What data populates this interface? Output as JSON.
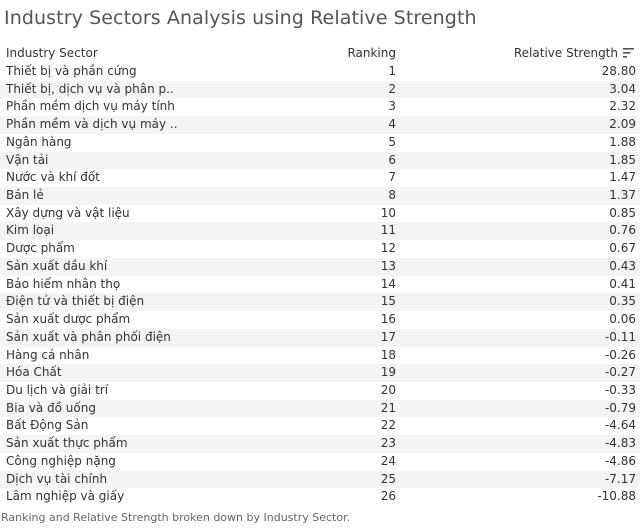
{
  "title": "Industry Sectors Analysis using Relative Strength",
  "table": {
    "headers": {
      "sector": "Industry Sector",
      "ranking": "Ranking",
      "strength": "Relative Strength"
    },
    "rows": [
      {
        "sector": "Thiết bị và phần cứng",
        "ranking": "1",
        "strength": "28.80"
      },
      {
        "sector": "Thiết bị, dịch vụ và phân p..",
        "ranking": "2",
        "strength": "3.04"
      },
      {
        "sector": "Phần mềm dịch vụ máy tính",
        "ranking": "3",
        "strength": "2.32"
      },
      {
        "sector": "Phần mềm và dịch vụ máy ..",
        "ranking": "4",
        "strength": "2.09"
      },
      {
        "sector": "Ngân hàng",
        "ranking": "5",
        "strength": "1.88"
      },
      {
        "sector": "Vận tải",
        "ranking": "6",
        "strength": "1.85"
      },
      {
        "sector": "Nước và khí đốt",
        "ranking": "7",
        "strength": "1.47"
      },
      {
        "sector": "Bán lẻ",
        "ranking": "8",
        "strength": "1.37"
      },
      {
        "sector": "Xây dựng và vật liệu",
        "ranking": "10",
        "strength": "0.85"
      },
      {
        "sector": "Kim loại",
        "ranking": "11",
        "strength": "0.76"
      },
      {
        "sector": "Dược phẩm",
        "ranking": "12",
        "strength": "0.67"
      },
      {
        "sector": "Sản xuất dầu khí",
        "ranking": "13",
        "strength": "0.43"
      },
      {
        "sector": "Bảo hiểm nhân thọ",
        "ranking": "14",
        "strength": "0.41"
      },
      {
        "sector": "Điện tử và thiết bị điện",
        "ranking": "15",
        "strength": "0.35"
      },
      {
        "sector": "Sản xuất dược phẩm",
        "ranking": "16",
        "strength": "0.06"
      },
      {
        "sector": "Sản xuất và phân phối điện",
        "ranking": "17",
        "strength": "-0.11"
      },
      {
        "sector": "Hàng cá nhân",
        "ranking": "18",
        "strength": "-0.26"
      },
      {
        "sector": "Hóa Chất",
        "ranking": "19",
        "strength": "-0.27"
      },
      {
        "sector": "Du lịch và giải trí",
        "ranking": "20",
        "strength": "-0.33"
      },
      {
        "sector": "Bia và đồ uống",
        "ranking": "21",
        "strength": "-0.79"
      },
      {
        "sector": "Bất Động Sản",
        "ranking": "22",
        "strength": "-4.64"
      },
      {
        "sector": "Sản xuất thực phẩm",
        "ranking": "23",
        "strength": "-4.83"
      },
      {
        "sector": "Công nghiệp nặng",
        "ranking": "24",
        "strength": "-4.86"
      },
      {
        "sector": "Dịch vụ tài chính",
        "ranking": "25",
        "strength": "-7.17"
      },
      {
        "sector": "Lâm nghiệp và giấy",
        "ranking": "26",
        "strength": "-10.88"
      }
    ]
  },
  "caption": "Ranking and Relative Strength broken down by Industry Sector.",
  "icons": {
    "sort": "sort-descending-icon"
  },
  "colors": {
    "row_alt": "#f4f4f4",
    "text": "#333333",
    "title": "#555555"
  }
}
